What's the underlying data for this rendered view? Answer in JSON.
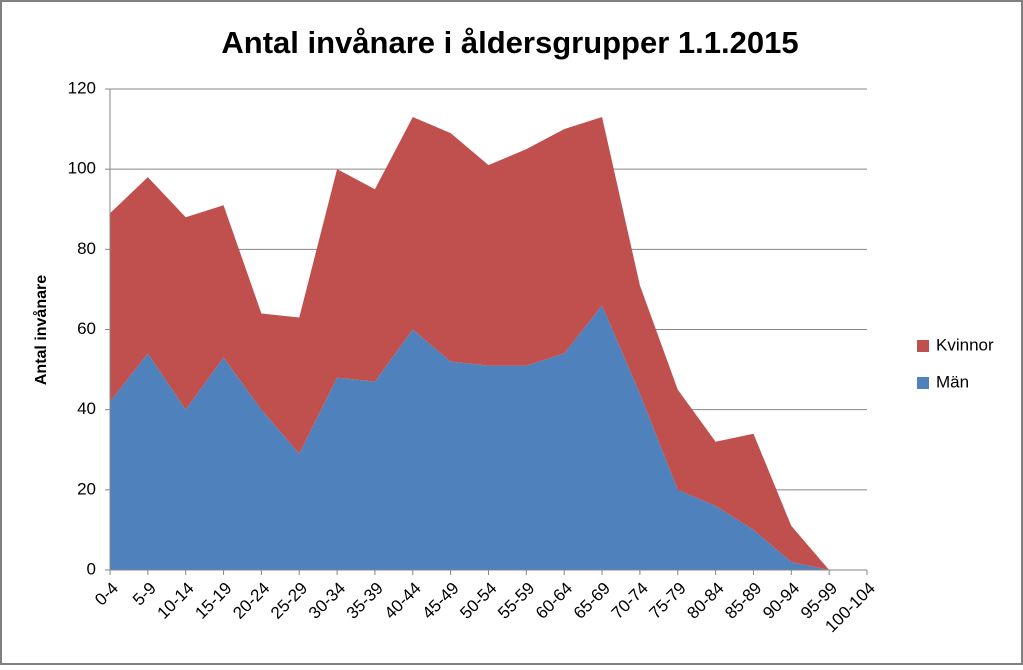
{
  "chart_data": {
    "type": "stacked_area",
    "title": "Antal invånare i åldersgrupper 1.1.2015",
    "y_label": "Antal invånare",
    "categories": [
      "0-4",
      "5-9",
      "10-14",
      "15-19",
      "20-24",
      "25-29",
      "30-34",
      "35-39",
      "40-44",
      "45-49",
      "50-54",
      "55-59",
      "60-64",
      "65-69",
      "70-74",
      "75-79",
      "80-84",
      "85-89",
      "90-94",
      "95-99",
      "100-104"
    ],
    "series": [
      {
        "name": "Män",
        "color": "#4f81bd",
        "values": [
          42,
          54,
          40,
          53,
          40,
          29,
          48,
          47,
          60,
          52,
          51,
          51,
          54,
          66,
          44,
          20,
          16,
          10,
          2,
          0,
          null
        ]
      },
      {
        "name": "Kvinnor",
        "color": "#c0504d",
        "values": [
          47,
          44,
          48,
          38,
          24,
          34,
          52,
          48,
          53,
          57,
          50,
          54,
          56,
          47,
          27,
          25,
          16,
          24,
          9,
          0,
          null
        ]
      }
    ],
    "ylim": [
      0,
      120
    ],
    "yticks": [
      0,
      20,
      40,
      60,
      80,
      100,
      120
    ],
    "grid": true,
    "legend": "right"
  }
}
